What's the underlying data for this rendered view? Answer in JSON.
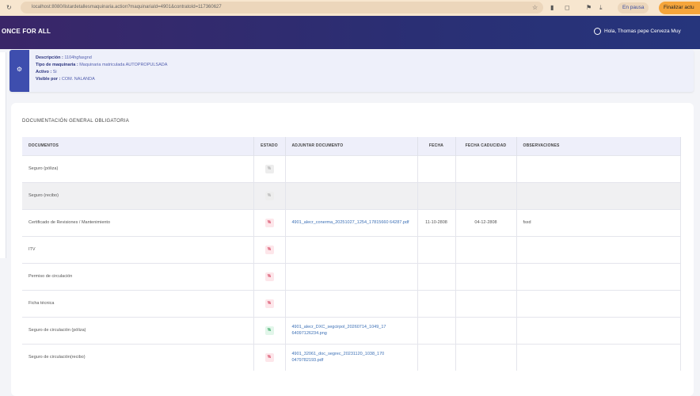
{
  "browser": {
    "url": "localhost:8080/listardetallesmaquinaria.action?maquinariaId=4901&contratoId=117360627",
    "pause_label": "En pausa",
    "finish_label": "Finalizar actu"
  },
  "header": {
    "logo": "ONCE FOR ALL",
    "greeting": "Hola, Thomas pepe Cerveza Muy"
  },
  "info": {
    "descripcion_label": "Descripción :",
    "descripcion": "1104hgfasgnd",
    "tipo_label": "Tipo de maquinaria :",
    "tipo": "Maquinaria matriculada AUTOPROPULSADA",
    "activo_label": "Activo :",
    "activo": "Si",
    "visible_label": "Visible por :",
    "visible": "COM. NALANDA"
  },
  "section": {
    "title": "DOCUMENTACIÓN GENERAL OBLIGATORIA"
  },
  "table": {
    "headers": [
      "DOCUMENTOS",
      "ESTADO",
      "ADJUNTAR DOCUMENTO",
      "FECHA",
      "FECHA CADUCIDAD",
      "OBSERVACIONES"
    ],
    "rows": [
      {
        "doc": "Seguro (póliza)",
        "estado": "grey",
        "adjunto": "",
        "fecha": "",
        "caducidad": "",
        "obs": ""
      },
      {
        "doc": "Seguro (recibo)",
        "estado": "grey",
        "adjunto": "",
        "fecha": "",
        "caducidad": "",
        "obs": ""
      },
      {
        "doc": "Certificado de Revisiones / Mantenimiento",
        "estado": "red",
        "adjunto": "4901_alecr_conerma_20251027_1254_17815660 64287.pdf",
        "fecha": "11-10-2808",
        "caducidad": "04-12-2808",
        "obs": "fsxd"
      },
      {
        "doc": "ITV",
        "estado": "red",
        "adjunto": "",
        "fecha": "",
        "caducidad": "",
        "obs": ""
      },
      {
        "doc": "Permiso de circulación",
        "estado": "red",
        "adjunto": "",
        "fecha": "",
        "caducidad": "",
        "obs": ""
      },
      {
        "doc": "Ficha técnica",
        "estado": "red",
        "adjunto": "",
        "fecha": "",
        "caducidad": "",
        "obs": ""
      },
      {
        "doc": "Seguro de circulación (póliza)",
        "estado": "green",
        "adjunto": "4901_alecr_DXC_segcirpol_20260714_1049_17 64097126234.png",
        "fecha": "",
        "caducidad": "",
        "obs": ""
      },
      {
        "doc": "Seguro de circulación(recibo)",
        "estado": "red",
        "adjunto": "4901_32061_doc_segrec_20231120_1038_170 0479782193.pdf",
        "fecha": "",
        "caducidad": "",
        "obs": ""
      }
    ]
  },
  "status_glyph": "%",
  "colors": {
    "header": "#2a2f74",
    "accent": "#3e4eae",
    "red": "#d0304f",
    "green": "#1f9d50",
    "link": "#3b6fb5"
  }
}
